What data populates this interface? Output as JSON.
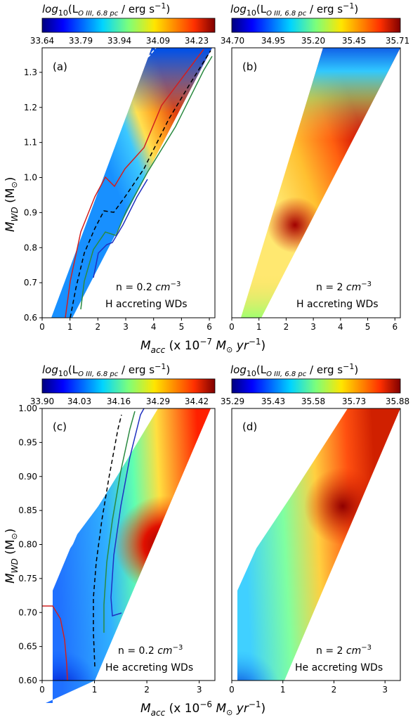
{
  "figure": {
    "top_xlabel": {
      "main": "M",
      "sub": "acc",
      "rest": " (x 10",
      "exp": "−7",
      "units": " M",
      "sun": "⊙",
      "units2": " yr",
      "exp2": "−1",
      "close": ")"
    },
    "bottom_xlabel": {
      "main": "M",
      "sub": "acc",
      "rest": " (x 10",
      "exp": "−6",
      "units": " M",
      "sun": "⊙",
      "units2": " yr",
      "exp2": "−1",
      "close": ")"
    },
    "top_ylabel": {
      "main": "M",
      "sub": "WD",
      "rest": "  (M",
      "sun": "⊙",
      "close": ")"
    },
    "bottom_ylabel": {
      "main": "M",
      "sub": "WD",
      "rest": " (M",
      "sun": "⊙",
      "close": ")"
    },
    "colorbar_title": {
      "pre": "log",
      "sub10": "10",
      "paren": "(L",
      "sub": "O III,  6.8 pc",
      "tail": " / erg s",
      "exp": "−1",
      "close": ")"
    }
  },
  "chart_data": [
    {
      "panel": "(a)",
      "type": "contour",
      "annotation_line1": {
        "pre": "n = 0.2 ",
        "unit": "cm",
        "exp": "−3"
      },
      "annotation_line2": "H accreting WDs",
      "xlim": [
        0,
        6.2
      ],
      "ylim": [
        0.6,
        1.37
      ],
      "xticks": [
        "0",
        "1",
        "2",
        "3",
        "4",
        "5",
        "6"
      ],
      "yticks": [
        "0.6",
        "0.7",
        "0.8",
        "0.9",
        "1.0",
        "1.1",
        "1.2",
        "1.3"
      ],
      "colorbar_ticks": [
        "33.64",
        "33.79",
        "33.94",
        "34.09",
        "34.23"
      ],
      "colorbar_range": [
        33.64,
        34.3
      ],
      "domain_boundary": [
        [
          0.7,
          0.6
        ],
        [
          1.4,
          0.6
        ],
        [
          6.2,
          1.37
        ],
        [
          2.9,
          1.37
        ]
      ]
    },
    {
      "panel": "(b)",
      "type": "contour",
      "annotation_line1": {
        "pre": "n = 2 ",
        "unit": "cm",
        "exp": "−3"
      },
      "annotation_line2": "H accreting WDs",
      "xlim": [
        0,
        6.2
      ],
      "ylim": [
        0.6,
        1.37
      ],
      "xticks": [
        "0",
        "1",
        "2",
        "3",
        "4",
        "5",
        "6"
      ],
      "yticks": [],
      "colorbar_ticks": [
        "34.70",
        "34.95",
        "35.20",
        "35.45",
        "35.71"
      ],
      "colorbar_range": [
        34.7,
        35.71
      ],
      "domain_boundary": [
        [
          0.7,
          0.6
        ],
        [
          1.4,
          0.6
        ],
        [
          6.2,
          1.37
        ],
        [
          2.9,
          1.37
        ]
      ]
    },
    {
      "panel": "(c)",
      "type": "contour",
      "annotation_line1": {
        "pre": "n = 0.2 ",
        "unit": "cm",
        "exp": "−3"
      },
      "annotation_line2": "He accreting WDs",
      "xlim": [
        0,
        3.3
      ],
      "ylim": [
        0.6,
        1.0
      ],
      "xticks": [
        "0",
        "1",
        "2",
        "3"
      ],
      "yticks": [
        "0.60",
        "0.65",
        "0.70",
        "0.75",
        "0.80",
        "0.85",
        "0.90",
        "0.95",
        "1.00"
      ],
      "colorbar_ticks": [
        "33.90",
        "34.03",
        "34.16",
        "34.29",
        "34.42"
      ],
      "colorbar_range": [
        33.9,
        34.48
      ],
      "domain_boundary": [
        [
          0.2,
          0.6
        ],
        [
          1.0,
          0.6
        ],
        [
          3.2,
          1.0
        ],
        [
          2.0,
          1.0
        ],
        [
          0.9,
          0.7
        ],
        [
          0.2,
          0.62
        ]
      ]
    },
    {
      "panel": "(d)",
      "type": "contour",
      "annotation_line1": {
        "pre": "n = 2 ",
        "unit": "cm",
        "exp": "−3"
      },
      "annotation_line2": "He accreting WDs",
      "xlim": [
        0,
        3.3
      ],
      "ylim": [
        0.6,
        1.0
      ],
      "xticks": [
        "0",
        "1",
        "2",
        "3"
      ],
      "yticks": [],
      "colorbar_ticks": [
        "35.29",
        "35.43",
        "35.58",
        "35.73",
        "35.88"
      ],
      "colorbar_range": [
        35.29,
        35.88
      ],
      "domain_boundary": [
        [
          0.2,
          0.6
        ],
        [
          1.0,
          0.6
        ],
        [
          3.2,
          1.0
        ],
        [
          2.0,
          1.0
        ],
        [
          0.9,
          0.7
        ],
        [
          0.2,
          0.62
        ]
      ]
    }
  ]
}
